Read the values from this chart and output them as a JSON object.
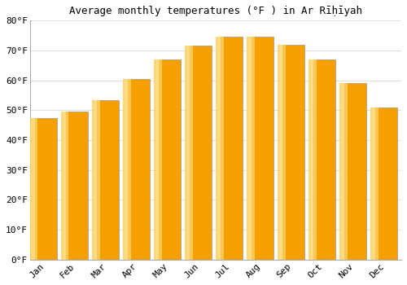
{
  "title": "Average monthly temperatures (°F ) in Ar Rīḥīyah",
  "months": [
    "Jan",
    "Feb",
    "Mar",
    "Apr",
    "May",
    "Jun",
    "Jul",
    "Aug",
    "Sep",
    "Oct",
    "Nov",
    "Dec"
  ],
  "values": [
    47.5,
    49.5,
    53.5,
    60.5,
    67.0,
    71.5,
    74.5,
    74.5,
    72.0,
    67.0,
    59.0,
    51.0
  ],
  "bar_color_dark": "#F5A000",
  "bar_color_light": "#FFD060",
  "bar_color_edge": "#888888",
  "ylim": [
    0,
    80
  ],
  "yticks": [
    0,
    10,
    20,
    30,
    40,
    50,
    60,
    70,
    80
  ],
  "ytick_labels": [
    "0°F",
    "10°F",
    "20°F",
    "30°F",
    "40°F",
    "50°F",
    "60°F",
    "70°F",
    "80°F"
  ],
  "background_color": "#ffffff",
  "grid_color": "#e0e0e0",
  "title_fontsize": 9,
  "tick_fontsize": 8,
  "font_family": "monospace",
  "bar_width": 0.75
}
